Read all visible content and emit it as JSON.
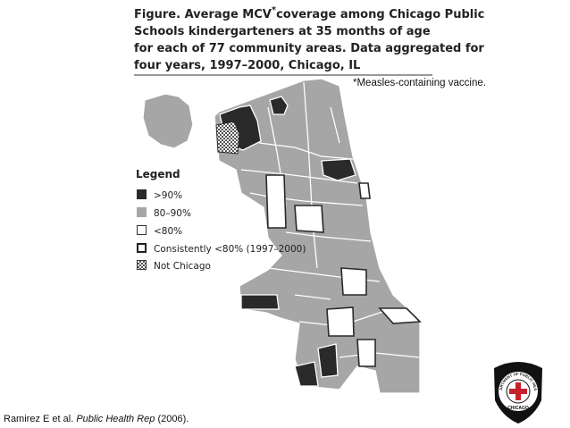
{
  "title": {
    "lead": "Figure. Average MCV",
    "asterisk": "*",
    "lines": [
      "coverage among Chicago Public",
      "Schools kindergarteners at 35 months of age",
      "for each of 77 community areas. Data aggregated for",
      "four years, 1997–2000, Chicago, IL"
    ]
  },
  "footnote": "*Measles-containing vaccine.",
  "legend": {
    "title": "Legend",
    "items": [
      ">90%",
      "80–90%",
      "<80%",
      "Consistently <80% (1997–2000)",
      "Not Chicago"
    ]
  },
  "citation": {
    "authors": "Ramirez E et al.",
    "journal": "Public Health Rep",
    "year": "(2006)."
  },
  "logo": {
    "top": "DEPARTMENT OF PUBLIC HEALTH",
    "bottom": "CHICAGO"
  }
}
